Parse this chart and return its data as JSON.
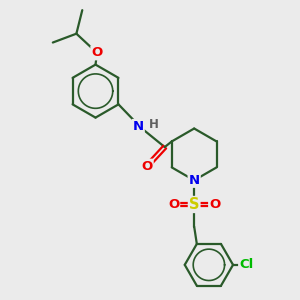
{
  "bg_color": "#ebebeb",
  "bond_color": "#2a5a2a",
  "bond_width": 1.6,
  "atom_colors": {
    "N": "#0000ee",
    "O": "#ee0000",
    "S": "#cccc00",
    "Cl": "#00bb00",
    "H": "#606060",
    "C": "#2a5a2a"
  },
  "font_size_atom": 9.5,
  "font_size_h": 8.5
}
